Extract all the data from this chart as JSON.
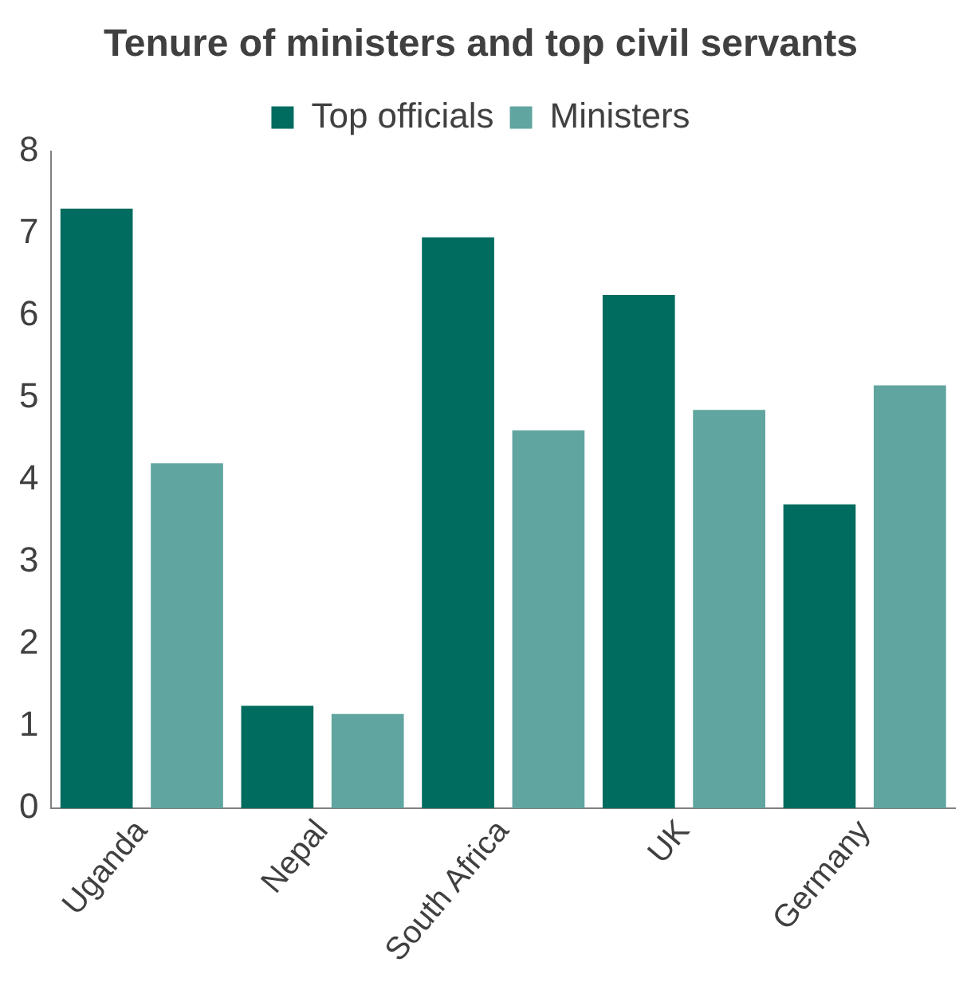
{
  "chart_data": {
    "type": "bar",
    "title": "Tenure of ministers and top civil servants",
    "categories": [
      "Uganda",
      "Nepal",
      "South Africa",
      "UK",
      "Germany"
    ],
    "series": [
      {
        "name": "Top officials",
        "color": "#006b5f",
        "values": [
          7.3,
          1.25,
          6.95,
          6.25,
          3.7
        ]
      },
      {
        "name": "Ministers",
        "color": "#60a5a0",
        "values": [
          4.2,
          1.15,
          4.6,
          4.85,
          5.15
        ]
      }
    ],
    "ylim": [
      0,
      8
    ],
    "yticks": [
      0,
      1,
      2,
      3,
      4,
      5,
      6,
      7,
      8
    ],
    "grid": false,
    "legend": "top"
  }
}
